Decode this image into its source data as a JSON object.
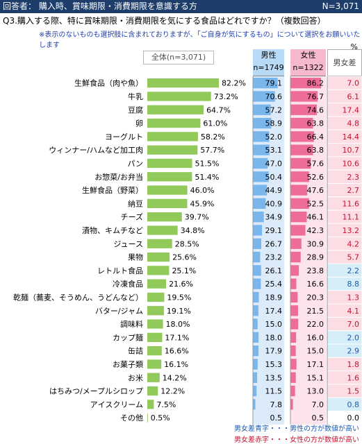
{
  "header": {
    "title": "回答者： 購入時、賞味期限・消費期限を意識する方",
    "n_total": "N=3,071"
  },
  "question": "Q3.購入する際、特に賞味期限・消費期限を気にする食品はどれですか？（複数回答）",
  "note": "※表示のないものも選択肢に含まれておりますが、「ご自身が気にするもの」について選択をお願いいたします",
  "unit": "%",
  "total_label": "全体(n=3,071)",
  "columns": {
    "male": "男性",
    "male_n": "n=1749",
    "female": "女性",
    "female_n": "n=1322",
    "diff": "男女差"
  },
  "legend": {
    "blue": "男女差青字・・・男性の方が数値が高い",
    "red": "男女差赤字・・・女性の方が数値が高い"
  },
  "colors": {
    "bar": "#92c95b",
    "male_bar": "#79b6ec",
    "female_bar": "#ee6c99",
    "male_bg": "#dcebfa",
    "female_bg": "#fde3ec",
    "blue_text": "#1a5ab8",
    "red_text": "#c8102e",
    "diff_red_bg": "#fbdde3",
    "diff_blue_bg": "#d6eef8",
    "header_bg": "#1e3d6b"
  },
  "chart_data": {
    "type": "bar",
    "categories": [
      "生鮮食品（肉や魚）",
      "牛乳",
      "豆腐",
      "卵",
      "ヨーグルト",
      "ウィンナー/ハムなど加工肉",
      "パン",
      "お惣菜/お弁当",
      "生鮮食品（野菜）",
      "納豆",
      "チーズ",
      "漬物、キムチなど",
      "ジュース",
      "果物",
      "レトルト食品",
      "冷凍食品",
      "乾麺（蕎麦、そうめん、うどんなど）",
      "バター/ジャム",
      "調味料",
      "カップ麺",
      "缶詰",
      "お菓子類",
      "お米",
      "はちみつ/メープルシロップ",
      "アイスクリーム",
      "その他"
    ],
    "series": [
      {
        "name": "全体(n=3,071)",
        "values": [
          82.2,
          73.2,
          64.7,
          61.0,
          58.2,
          57.7,
          51.5,
          51.4,
          46.0,
          45.9,
          39.7,
          34.8,
          28.5,
          25.6,
          25.1,
          21.6,
          19.5,
          19.1,
          18.0,
          17.1,
          16.6,
          16.1,
          14.2,
          12.2,
          7.5,
          0.5
        ]
      },
      {
        "name": "男性",
        "values": [
          79.1,
          70.6,
          57.2,
          58.9,
          52.0,
          53.1,
          47.0,
          50.4,
          44.9,
          40.9,
          34.9,
          29.1,
          26.7,
          23.2,
          26.1,
          25.4,
          18.9,
          17.4,
          15.0,
          18.0,
          17.9,
          15.3,
          13.5,
          11.5,
          7.8,
          0.5
        ]
      },
      {
        "name": "女性",
        "values": [
          86.2,
          76.7,
          74.6,
          63.8,
          66.4,
          63.8,
          57.6,
          52.6,
          47.6,
          52.5,
          46.1,
          42.3,
          30.9,
          28.9,
          23.8,
          16.6,
          20.3,
          21.5,
          22.0,
          16.0,
          15.0,
          17.1,
          15.1,
          13.0,
          7.0,
          0.5
        ]
      },
      {
        "name": "男女差",
        "values": [
          "7.0",
          "6.1",
          "17.4",
          "4.8",
          "14.4",
          "10.7",
          "10.6",
          "2.3",
          "2.7",
          "11.6",
          "11.1",
          "13.2",
          "4.2",
          "5.7",
          "2.2",
          "8.8",
          "1.3",
          "4.1",
          "7.0",
          "2.0",
          "2.9",
          "1.8",
          "1.6",
          "1.5",
          "0.8",
          "0.0"
        ]
      }
    ],
    "diff_direction": [
      "f",
      "f",
      "f",
      "f",
      "f",
      "f",
      "f",
      "f",
      "f",
      "f",
      "f",
      "f",
      "f",
      "f",
      "m",
      "m",
      "f",
      "f",
      "f",
      "m",
      "m",
      "f",
      "f",
      "f",
      "m",
      "n"
    ],
    "xlim": [
      0,
      100
    ]
  }
}
